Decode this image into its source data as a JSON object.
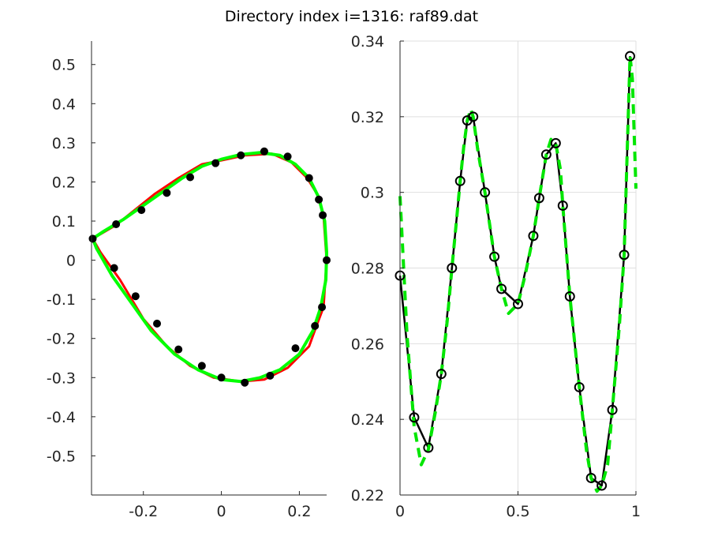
{
  "title": "Directory index i=1316: raf89.dat",
  "chart_data": [
    {
      "type": "line",
      "title": "",
      "xlabel": "",
      "ylabel": "",
      "xlim": [
        -0.333,
        0.27
      ],
      "ylim": [
        -0.6,
        0.56
      ],
      "xticks": [
        -0.2,
        0,
        0.2
      ],
      "xtick_labels": [
        "-0.2",
        "0",
        "0.2"
      ],
      "yticks": [
        0.5,
        0.4,
        0.3,
        0.2,
        0.1,
        0,
        -0.1,
        -0.2,
        -0.3,
        -0.4,
        -0.5
      ],
      "ytick_labels": [
        "0.5",
        "0.4",
        "0.3",
        "0.2",
        "0.1",
        "0",
        "-0.1",
        "-0.2",
        "-0.3",
        "-0.4",
        "-0.5"
      ],
      "grid": false,
      "series": [
        {
          "color": "#ff0000",
          "style": "solid",
          "x": [
            -0.33,
            -0.27,
            -0.22,
            -0.17,
            -0.11,
            -0.05,
            0.0,
            0.06,
            0.13,
            0.18,
            0.22,
            0.245,
            0.262,
            0.27,
            0.262,
            0.245,
            0.225,
            0.17,
            0.11,
            0.05,
            -0.02,
            -0.08,
            -0.14,
            -0.2,
            -0.26,
            -0.31,
            -0.33
          ],
          "y": [
            0.055,
            0.09,
            0.13,
            0.17,
            0.21,
            0.245,
            0.255,
            0.268,
            0.272,
            0.25,
            0.21,
            0.17,
            0.115,
            0.0,
            -0.12,
            -0.165,
            -0.22,
            -0.275,
            -0.305,
            -0.31,
            -0.3,
            -0.27,
            -0.22,
            -0.15,
            -0.05,
            0.02,
            0.055
          ]
        },
        {
          "color": "#00ff00",
          "style": "solid",
          "x": [
            -0.33,
            -0.3,
            -0.25,
            -0.2,
            -0.15,
            -0.1,
            -0.05,
            0.0,
            0.05,
            0.1,
            0.15,
            0.19,
            0.225,
            0.25,
            0.265,
            0.27,
            0.268,
            0.255,
            0.235,
            0.2,
            0.15,
            0.1,
            0.05,
            0.0,
            -0.06,
            -0.12,
            -0.18,
            -0.23,
            -0.28,
            -0.32,
            -0.33
          ],
          "y": [
            0.055,
            0.075,
            0.105,
            0.14,
            0.175,
            0.21,
            0.24,
            0.258,
            0.27,
            0.275,
            0.268,
            0.245,
            0.21,
            0.16,
            0.1,
            0.02,
            -0.05,
            -0.12,
            -0.18,
            -0.24,
            -0.28,
            -0.3,
            -0.31,
            -0.305,
            -0.28,
            -0.24,
            -0.18,
            -0.11,
            -0.04,
            0.03,
            0.055
          ]
        }
      ],
      "points": {
        "color": "#000000",
        "marker": "filled-circle",
        "x": [
          -0.33,
          -0.27,
          -0.205,
          -0.14,
          -0.08,
          -0.015,
          0.05,
          0.11,
          0.17,
          0.225,
          0.25,
          0.26,
          0.27,
          0.258,
          0.24,
          0.19,
          0.125,
          0.06,
          0.0,
          -0.05,
          -0.11,
          -0.165,
          -0.22,
          -0.275
        ],
        "y": [
          0.055,
          0.092,
          0.128,
          0.172,
          0.212,
          0.248,
          0.268,
          0.278,
          0.265,
          0.21,
          0.155,
          0.115,
          0.0,
          -0.12,
          -0.168,
          -0.225,
          -0.295,
          -0.313,
          -0.3,
          -0.27,
          -0.228,
          -0.162,
          -0.092,
          -0.02
        ]
      }
    },
    {
      "type": "line",
      "title": "",
      "xlabel": "",
      "ylabel": "",
      "xlim": [
        0,
        1
      ],
      "ylim": [
        0.22,
        0.34
      ],
      "xticks": [
        0,
        0.5,
        1
      ],
      "xtick_labels": [
        "0",
        "0.5",
        "1"
      ],
      "yticks": [
        0.22,
        0.24,
        0.26,
        0.28,
        0.3,
        0.32,
        0.34
      ],
      "ytick_labels": [
        "0.22",
        "0.24",
        "0.26",
        "0.28",
        "0.3",
        "0.32",
        "0.34"
      ],
      "grid": true,
      "series": [
        {
          "color": "#000000",
          "style": "solid",
          "marker": "open-circle",
          "x": [
            0.0,
            0.06,
            0.12,
            0.175,
            0.22,
            0.255,
            0.285,
            0.31,
            0.36,
            0.4,
            0.43,
            0.5,
            0.565,
            0.59,
            0.62,
            0.66,
            0.69,
            0.72,
            0.76,
            0.81,
            0.855,
            0.9,
            0.95,
            0.975
          ],
          "y": [
            0.278,
            0.2405,
            0.2325,
            0.252,
            0.28,
            0.303,
            0.319,
            0.32,
            0.3,
            0.283,
            0.2745,
            0.2705,
            0.2885,
            0.2985,
            0.31,
            0.313,
            0.2965,
            0.2725,
            0.2485,
            0.2245,
            0.2225,
            0.2425,
            0.2835,
            0.336
          ]
        },
        {
          "color": "#00e600",
          "style": "dashed",
          "x": [
            0.0,
            0.03,
            0.06,
            0.09,
            0.12,
            0.15,
            0.175,
            0.2,
            0.22,
            0.24,
            0.255,
            0.27,
            0.285,
            0.3,
            0.31,
            0.33,
            0.36,
            0.4,
            0.43,
            0.46,
            0.5,
            0.53,
            0.565,
            0.59,
            0.62,
            0.64,
            0.66,
            0.68,
            0.69,
            0.72,
            0.76,
            0.79,
            0.81,
            0.835,
            0.855,
            0.88,
            0.9,
            0.93,
            0.95,
            0.975,
            0.985,
            1.0
          ],
          "y": [
            0.299,
            0.262,
            0.238,
            0.228,
            0.232,
            0.242,
            0.252,
            0.266,
            0.28,
            0.293,
            0.303,
            0.312,
            0.319,
            0.322,
            0.32,
            0.311,
            0.3,
            0.283,
            0.2745,
            0.268,
            0.2705,
            0.278,
            0.2885,
            0.2985,
            0.31,
            0.314,
            0.313,
            0.306,
            0.2965,
            0.2725,
            0.2485,
            0.232,
            0.2245,
            0.221,
            0.2225,
            0.228,
            0.2425,
            0.265,
            0.2835,
            0.336,
            0.33,
            0.301
          ]
        }
      ]
    }
  ]
}
